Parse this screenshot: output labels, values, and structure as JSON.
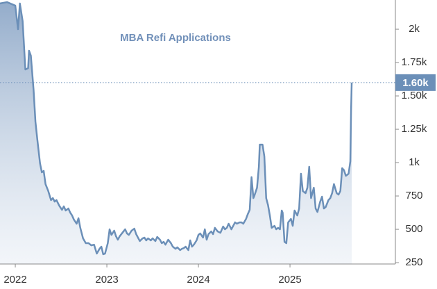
{
  "chart_data": {
    "type": "area",
    "title": "MBA Refi Applications",
    "x": [
      2021.83,
      2021.91,
      2022.0,
      2022.03,
      2022.05,
      2022.08,
      2022.11,
      2022.14,
      2022.15,
      2022.17,
      2022.2,
      2022.22,
      2022.24,
      2022.27,
      2022.29,
      2022.31,
      2022.33,
      2022.36,
      2022.39,
      2022.41,
      2022.43,
      2022.45,
      2022.48,
      2022.51,
      2022.53,
      2022.55,
      2022.58,
      2022.6,
      2022.62,
      2022.64,
      2022.67,
      2022.69,
      2022.71,
      2022.74,
      2022.77,
      2022.8,
      2022.83,
      2022.86,
      2022.89,
      2022.92,
      2022.94,
      2022.96,
      2022.98,
      2023.01,
      2023.03,
      2023.05,
      2023.08,
      2023.1,
      2023.12,
      2023.14,
      2023.17,
      2023.2,
      2023.22,
      2023.24,
      2023.27,
      2023.3,
      2023.32,
      2023.34,
      2023.36,
      2023.39,
      2023.41,
      2023.43,
      2023.45,
      2023.48,
      2023.5,
      2023.53,
      2023.55,
      2023.58,
      2023.6,
      2023.62,
      2023.64,
      2023.67,
      2023.7,
      2023.72,
      2023.75,
      2023.77,
      2023.8,
      2023.82,
      2023.84,
      2023.86,
      2023.89,
      2023.91,
      2023.93,
      2023.95,
      2023.98,
      2024.0,
      2024.02,
      2024.05,
      2024.07,
      2024.09,
      2024.11,
      2024.14,
      2024.16,
      2024.18,
      2024.21,
      2024.24,
      2024.27,
      2024.29,
      2024.31,
      2024.33,
      2024.36,
      2024.38,
      2024.4,
      2024.42,
      2024.45,
      2024.47,
      2024.49,
      2024.52,
      2024.54,
      2024.56,
      2024.58,
      2024.6,
      2024.61,
      2024.64,
      2024.66,
      2024.67,
      2024.7,
      2024.72,
      2024.74,
      2024.76,
      2024.78,
      2024.8,
      2024.83,
      2024.85,
      2024.87,
      2024.89,
      2024.91,
      2024.92,
      2024.94,
      2024.96,
      2024.98,
      2025.01,
      2025.03,
      2025.05,
      2025.08,
      2025.1,
      2025.12,
      2025.14,
      2025.17,
      2025.19,
      2025.21,
      2025.23,
      2025.26,
      2025.28,
      2025.3,
      2025.33,
      2025.35,
      2025.37,
      2025.39,
      2025.42,
      2025.44,
      2025.46,
      2025.48,
      2025.51,
      2025.53,
      2025.55,
      2025.57,
      2025.59,
      2025.61,
      2025.64,
      2025.659,
      2025.667,
      2025.674
    ],
    "values": [
      2193,
      2203,
      2177,
      2000,
      2193,
      2062,
      1698,
      1708,
      1839,
      1802,
      1542,
      1307,
      1177,
      995,
      927,
      938,
      839,
      787,
      719,
      734,
      708,
      719,
      677,
      646,
      672,
      641,
      656,
      625,
      604,
      573,
      542,
      583,
      511,
      432,
      396,
      396,
      380,
      385,
      318,
      354,
      370,
      313,
      318,
      396,
      500,
      458,
      490,
      448,
      422,
      448,
      474,
      500,
      469,
      458,
      490,
      505,
      464,
      438,
      412,
      432,
      438,
      417,
      432,
      417,
      432,
      412,
      443,
      422,
      396,
      406,
      385,
      422,
      396,
      370,
      354,
      365,
      344,
      354,
      359,
      370,
      344,
      417,
      370,
      385,
      417,
      458,
      469,
      438,
      500,
      422,
      464,
      484,
      464,
      511,
      484,
      474,
      521,
      500,
      511,
      542,
      500,
      526,
      552,
      542,
      552,
      552,
      542,
      578,
      615,
      646,
      891,
      734,
      750,
      812,
      969,
      1135,
      1135,
      1047,
      734,
      682,
      604,
      511,
      526,
      500,
      511,
      500,
      641,
      625,
      406,
      396,
      552,
      578,
      526,
      641,
      604,
      656,
      917,
      787,
      771,
      812,
      969,
      734,
      812,
      656,
      630,
      708,
      745,
      656,
      667,
      719,
      734,
      771,
      839,
      771,
      760,
      787,
      958,
      943,
      901,
      917,
      1010,
      1385,
      1600
    ],
    "color": "#6b8fb8",
    "xlim": [
      2021.833,
      2026.151
    ],
    "xticks": [
      2022,
      2023,
      2024,
      2025
    ],
    "ylim": [
      240,
      2219
    ],
    "yticks": [
      250,
      500,
      750,
      {
        "value": 1000,
        "label": "1k"
      },
      {
        "value": 1250,
        "label": "1.25k"
      },
      {
        "value": 1500,
        "label": "1.50k"
      },
      {
        "value": 1750,
        "label": "1.75k"
      },
      {
        "value": 2000,
        "label": "2k"
      }
    ],
    "last_value": {
      "value": 1600,
      "label": "1.60k"
    }
  }
}
